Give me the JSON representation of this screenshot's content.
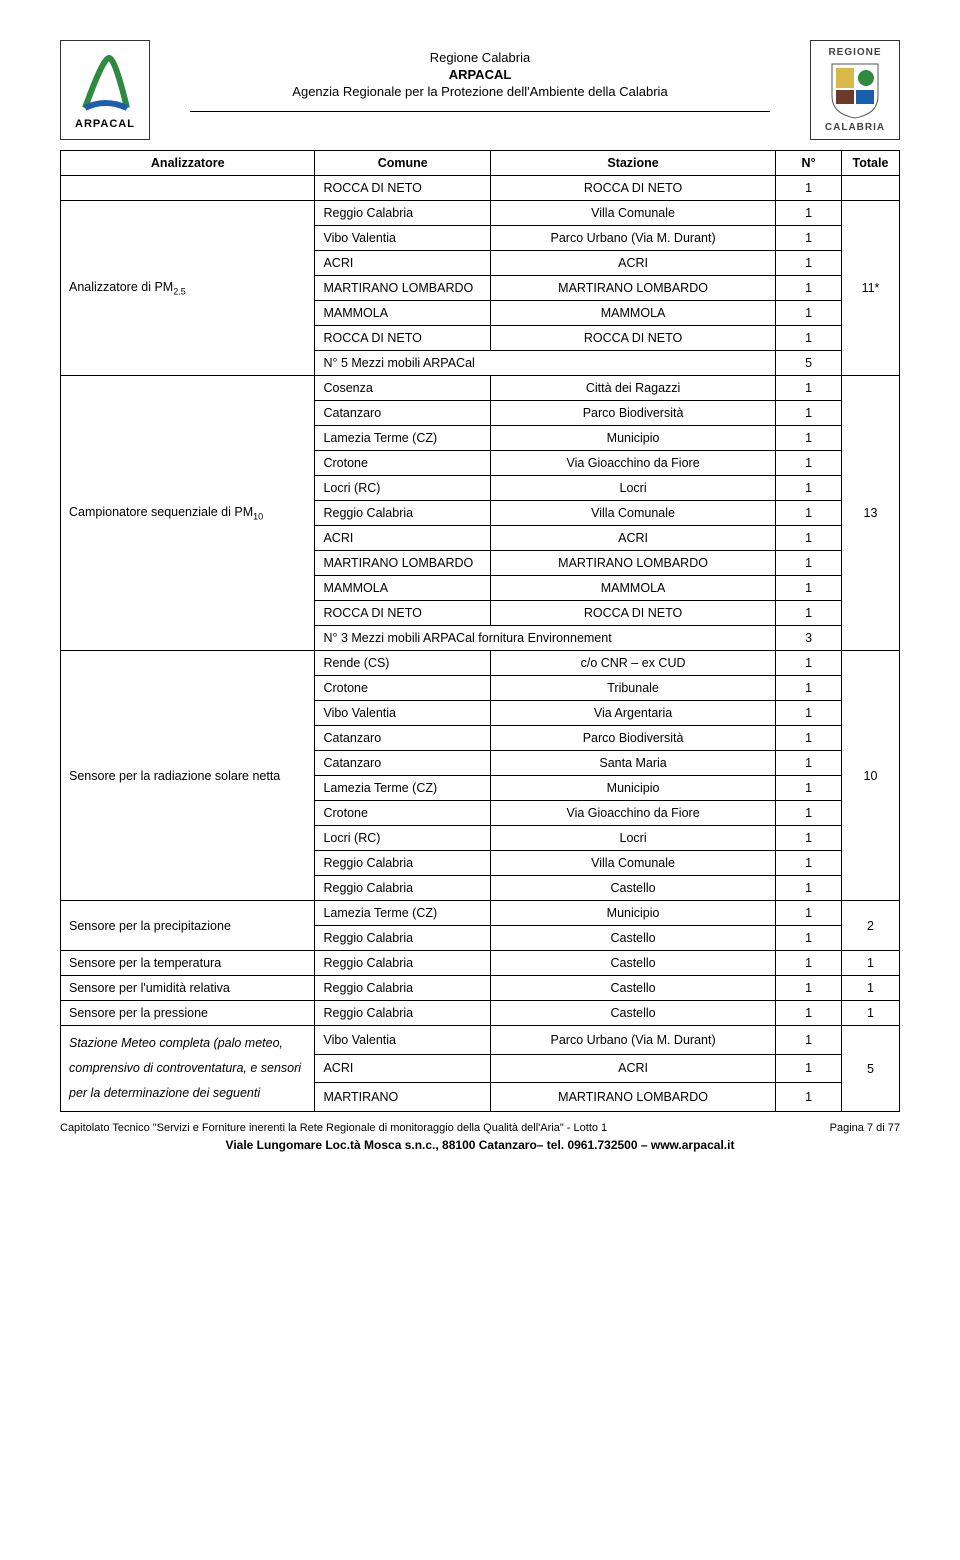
{
  "header": {
    "logo_left_label": "ARPACAL",
    "logo_right_top": "REGIONE",
    "logo_right_bot": "CALABRIA",
    "line1": "Regione Calabria",
    "line2": "ARPACAL",
    "line3": "Agenzia Regionale per la Protezione dell'Ambiente della Calabria"
  },
  "thead": {
    "analizzatore": "Analizzatore",
    "comune": "Comune",
    "stazione": "Stazione",
    "n": "N°",
    "totale": "Totale"
  },
  "groups": [
    {
      "label": "",
      "totale": "",
      "rows": [
        {
          "comune": "ROCCA DI NETO",
          "stazione": "ROCCA DI NETO",
          "n": "1"
        }
      ]
    },
    {
      "label": "Analizzatore di PM",
      "label_sub": "2.5",
      "totale": "11*",
      "rows": [
        {
          "comune": "Reggio Calabria",
          "stazione": "Villa Comunale",
          "n": "1"
        },
        {
          "comune": "Vibo Valentia",
          "stazione": "Parco Urbano (Via M. Durant)",
          "n": "1"
        },
        {
          "comune": "ACRI",
          "stazione": "ACRI",
          "n": "1"
        },
        {
          "comune": "MARTIRANO LOMBARDO",
          "stazione": "MARTIRANO LOMBARDO",
          "n": "1"
        },
        {
          "comune": "MAMMOLA",
          "stazione": "MAMMOLA",
          "n": "1"
        },
        {
          "comune": "ROCCA DI NETO",
          "stazione": "ROCCA DI NETO",
          "n": "1"
        },
        {
          "comune_span": "N° 5 Mezzi mobili ARPACal",
          "n": "5"
        }
      ]
    },
    {
      "label": "Campionatore sequenziale di PM",
      "label_sub": "10",
      "totale": "13",
      "rows": [
        {
          "comune": "Cosenza",
          "stazione": "Città dei Ragazzi",
          "n": "1"
        },
        {
          "comune": "Catanzaro",
          "stazione": "Parco Biodiversità",
          "n": "1"
        },
        {
          "comune": "Lamezia Terme (CZ)",
          "stazione": "Municipio",
          "n": "1"
        },
        {
          "comune": "Crotone",
          "stazione": "Via Gioacchino da Fiore",
          "n": "1"
        },
        {
          "comune": "Locri (RC)",
          "stazione": "Locri",
          "n": "1"
        },
        {
          "comune": "Reggio Calabria",
          "stazione": "Villa Comunale",
          "n": "1"
        },
        {
          "comune": "ACRI",
          "stazione": "ACRI",
          "n": "1"
        },
        {
          "comune": "MARTIRANO LOMBARDO",
          "stazione": "MARTIRANO LOMBARDO",
          "n": "1"
        },
        {
          "comune": "MAMMOLA",
          "stazione": "MAMMOLA",
          "n": "1"
        },
        {
          "comune": "ROCCA DI NETO",
          "stazione": "ROCCA DI NETO",
          "n": "1"
        },
        {
          "comune_span": "N° 3 Mezzi mobili ARPACal fornitura Environnement",
          "n": "3"
        }
      ]
    },
    {
      "label": "Sensore per la radiazione solare netta",
      "totale": "10",
      "rows": [
        {
          "comune": "Rende (CS)",
          "stazione": "c/o CNR – ex CUD",
          "n": "1"
        },
        {
          "comune": "Crotone",
          "stazione": "Tribunale",
          "n": "1"
        },
        {
          "comune": "Vibo Valentia",
          "stazione": "Via Argentaria",
          "n": "1"
        },
        {
          "comune": "Catanzaro",
          "stazione": "Parco Biodiversità",
          "n": "1"
        },
        {
          "comune": "Catanzaro",
          "stazione": "Santa Maria",
          "n": "1"
        },
        {
          "comune": "Lamezia Terme (CZ)",
          "stazione": "Municipio",
          "n": "1"
        },
        {
          "comune": "Crotone",
          "stazione": "Via Gioacchino da Fiore",
          "n": "1"
        },
        {
          "comune": "Locri (RC)",
          "stazione": "Locri",
          "n": "1"
        },
        {
          "comune": "Reggio Calabria",
          "stazione": "Villa Comunale",
          "n": "1"
        },
        {
          "comune": "Reggio Calabria",
          "stazione": "Castello",
          "n": "1"
        }
      ]
    },
    {
      "label": "Sensore per la precipitazione",
      "totale": "2",
      "rows": [
        {
          "comune": "Lamezia Terme (CZ)",
          "stazione": "Municipio",
          "n": "1"
        },
        {
          "comune": "Reggio Calabria",
          "stazione": "Castello",
          "n": "1"
        }
      ]
    },
    {
      "label": "Sensore per la temperatura",
      "totale": "1",
      "rows": [
        {
          "comune": "Reggio Calabria",
          "stazione": "Castello",
          "n": "1"
        }
      ]
    },
    {
      "label": "Sensore per l'umidità relativa",
      "totale": "1",
      "rows": [
        {
          "comune": "Reggio Calabria",
          "stazione": "Castello",
          "n": "1"
        }
      ]
    },
    {
      "label": "Sensore per la pressione",
      "totale": "1",
      "rows": [
        {
          "comune": "Reggio Calabria",
          "stazione": "Castello",
          "n": "1"
        }
      ]
    },
    {
      "label": "Stazione Meteo completa (palo meteo, comprensivo di controventatura, e sensori per la determinazione dei seguenti",
      "label_italic": true,
      "totale": "5",
      "rows": [
        {
          "comune": "Vibo Valentia",
          "stazione": "Parco Urbano (Via M. Durant)",
          "n": "1"
        },
        {
          "comune": "ACRI",
          "stazione": "ACRI",
          "n": "1"
        },
        {
          "comune": "MARTIRANO",
          "stazione": "MARTIRANO LOMBARDO",
          "n": "1"
        }
      ]
    }
  ],
  "footer": {
    "line_left": "Capitolato Tecnico \"Servizi e Forniture inerenti la Rete Regionale di monitoraggio della Qualità dell'Aria\" - Lotto 1",
    "line_right": "Pagina 7 di 77",
    "line_center": "Viale Lungomare Loc.tà Mosca s.n.c., 88100 Catanzaro– tel. 0961.732500 – www.arpacal.it"
  },
  "colors": {
    "text": "#000000",
    "border": "#000000",
    "bg": "#ffffff",
    "logo_green": "#2d8a3e",
    "logo_blue": "#1a5fad",
    "logo_gold": "#d9b84a"
  }
}
